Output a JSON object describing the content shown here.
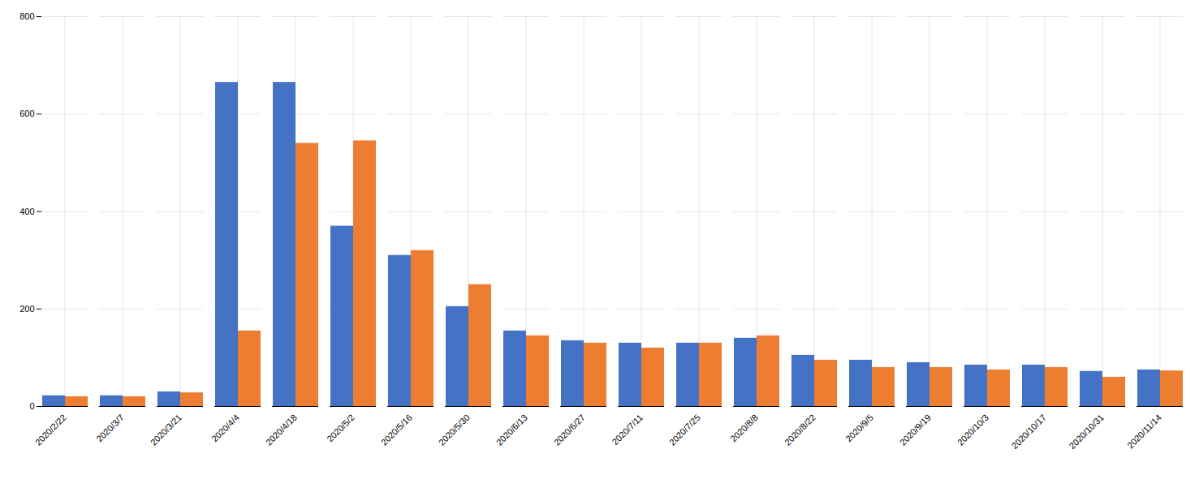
{
  "chart_data": {
    "type": "bar",
    "categories": [
      "2020/2/22",
      "2020/3/7",
      "2020/3/21",
      "2020/4/4",
      "2020/4/18",
      "2020/5/2",
      "2020/5/16",
      "2020/5/30",
      "2020/6/13",
      "2020/6/27",
      "2020/7/11",
      "2020/7/25",
      "2020/8/8",
      "2020/8/22",
      "2020/9/5",
      "2020/9/19",
      "2020/10/3",
      "2020/10/17",
      "2020/10/31",
      "2020/11/14"
    ],
    "series": [
      {
        "color": "#4472c4",
        "values": [
          22,
          22,
          30,
          665,
          665,
          370,
          310,
          205,
          155,
          135,
          130,
          130,
          140,
          105,
          95,
          90,
          85,
          85,
          72,
          75
        ]
      },
      {
        "color": "#ed7d31",
        "values": [
          20,
          20,
          28,
          155,
          540,
          545,
          320,
          250,
          145,
          130,
          120,
          130,
          145,
          95,
          80,
          80,
          75,
          80,
          60,
          73
        ]
      }
    ],
    "ylim": [
      0,
      800
    ],
    "yticks": [
      0,
      200,
      400,
      600,
      800
    ],
    "grid": true
  }
}
